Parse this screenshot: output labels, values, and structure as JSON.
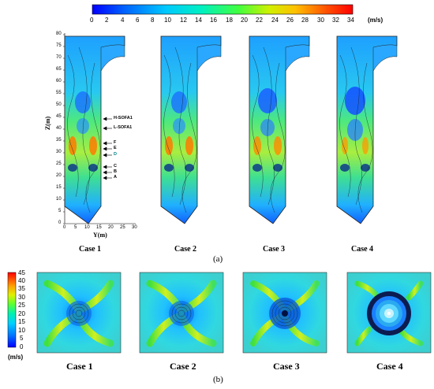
{
  "top_colorbar": {
    "ticks": [
      "0",
      "2",
      "4",
      "6",
      "8",
      "10",
      "12",
      "14",
      "16",
      "18",
      "20",
      "22",
      "24",
      "26",
      "28",
      "30",
      "32",
      "34"
    ],
    "unit": "(m/s)"
  },
  "panel_a": {
    "axis_z_label": "Z(m)",
    "axis_y_label": "Y(m)",
    "z_ticks": [
      "0",
      "5",
      "10",
      "15",
      "20",
      "25",
      "30",
      "35",
      "40",
      "45",
      "50",
      "55",
      "60",
      "65",
      "70",
      "75",
      "80"
    ],
    "y_ticks": [
      "0",
      "5",
      "10",
      "15",
      "20",
      "25",
      "30"
    ],
    "ports": [
      "H-SOFA1",
      "L-SOFA1",
      "F",
      "E",
      "D",
      "C",
      "B",
      "A"
    ],
    "cases": [
      "Case 1",
      "Case 2",
      "Case 3",
      "Case 4"
    ],
    "label": "(a)"
  },
  "panel_b": {
    "colorbar_ticks": [
      "45",
      "40",
      "35",
      "30",
      "25",
      "20",
      "15",
      "10",
      "5",
      "0"
    ],
    "unit": "(m/s)",
    "cases": [
      "Case 1",
      "Case 2",
      "Case 3",
      "Case 4"
    ],
    "label": "(b)"
  },
  "colors": {
    "scale": [
      "#0000ff",
      "#0066ff",
      "#00ccff",
      "#00ffcc",
      "#33ff33",
      "#ccff00",
      "#ffcc00",
      "#ff6600",
      "#ff0000"
    ]
  }
}
